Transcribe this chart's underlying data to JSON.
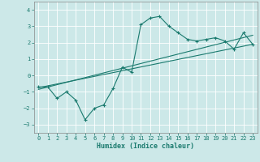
{
  "xlabel": "Humidex (Indice chaleur)",
  "bg_color": "#cce8e8",
  "line_color": "#1a7a6e",
  "xlim": [
    -0.5,
    23.5
  ],
  "ylim": [
    -3.5,
    4.5
  ],
  "yticks": [
    -3,
    -2,
    -1,
    0,
    1,
    2,
    3,
    4
  ],
  "xticks": [
    0,
    1,
    2,
    3,
    4,
    5,
    6,
    7,
    8,
    9,
    10,
    11,
    12,
    13,
    14,
    15,
    16,
    17,
    18,
    19,
    20,
    21,
    22,
    23
  ],
  "line1_x": [
    0,
    1,
    2,
    3,
    4,
    5,
    6,
    7,
    8,
    9,
    10,
    11,
    12,
    13,
    14,
    15,
    16,
    17,
    18,
    19,
    20,
    21,
    22,
    23
  ],
  "line1_y": [
    -0.7,
    -0.7,
    -1.4,
    -1.0,
    -1.5,
    -2.7,
    -2.0,
    -1.8,
    -0.8,
    0.5,
    0.2,
    3.1,
    3.5,
    3.6,
    3.0,
    2.6,
    2.2,
    2.1,
    2.2,
    2.3,
    2.1,
    1.6,
    2.6,
    1.9
  ],
  "line2_x": [
    0,
    23
  ],
  "line2_y": [
    -0.75,
    1.9
  ],
  "line3_x": [
    0,
    23
  ],
  "line3_y": [
    -0.85,
    2.45
  ]
}
